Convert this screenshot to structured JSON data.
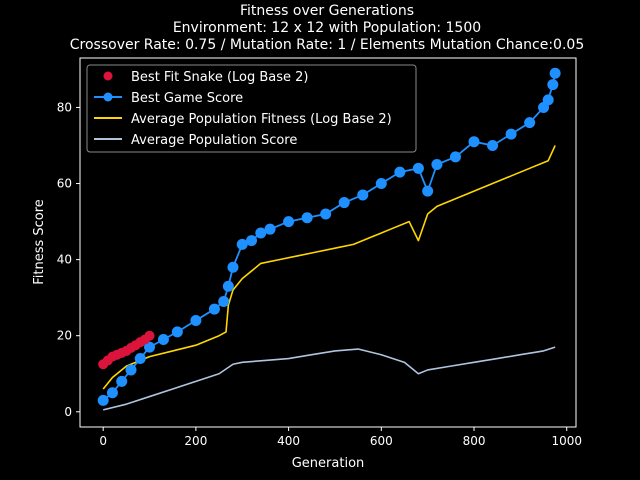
{
  "chart_data": {
    "type": "line",
    "title": "Fitness over Generations",
    "subtitle_lines": [
      "Environment: 12 x 12 with Population: 1500",
      "Crossover Rate: 0.75 / Mutation Rate: 1 / Elements Mutation Chance:0.05"
    ],
    "xlabel": "Generation",
    "ylabel": "Fitness Score",
    "xlim": [
      -50,
      1020
    ],
    "ylim": [
      -4,
      93
    ],
    "xticks": [
      0,
      200,
      400,
      600,
      800,
      1000
    ],
    "yticks": [
      0,
      20,
      40,
      60,
      80
    ],
    "legend_position": "top-left",
    "grid": false,
    "series": [
      {
        "name": "Best Fit Snake (Log Base 2)",
        "style": "scatter",
        "color": "#dc143c",
        "x": [
          0,
          10,
          20,
          30,
          40,
          50,
          60,
          70,
          80,
          90,
          100
        ],
        "y": [
          12.5,
          13.5,
          14.5,
          15,
          15.5,
          16,
          16.8,
          17.5,
          18.3,
          19,
          20
        ]
      },
      {
        "name": "Best Game Score",
        "style": "line-marker",
        "color": "#1e90ff",
        "x": [
          0,
          20,
          40,
          60,
          80,
          100,
          130,
          160,
          200,
          240,
          260,
          270,
          280,
          300,
          320,
          340,
          360,
          400,
          440,
          480,
          520,
          560,
          600,
          640,
          680,
          700,
          720,
          760,
          800,
          840,
          880,
          920,
          950,
          960,
          970,
          975
        ],
        "y": [
          3,
          5,
          8,
          11,
          14,
          17,
          19,
          21,
          24,
          27,
          29,
          33,
          38,
          44,
          45,
          47,
          48,
          50,
          51,
          52,
          55,
          57,
          60,
          63,
          64,
          58,
          65,
          67,
          71,
          70,
          73,
          76,
          80,
          82,
          86,
          89
        ]
      },
      {
        "name": "Average Population Fitness (Log Base 2)",
        "style": "line",
        "color": "#ffd700",
        "x": [
          0,
          20,
          50,
          100,
          150,
          200,
          250,
          265,
          270,
          280,
          300,
          340,
          380,
          420,
          460,
          500,
          540,
          580,
          620,
          660,
          680,
          700,
          720,
          760,
          800,
          840,
          880,
          920,
          960,
          975
        ],
        "y": [
          6,
          9,
          12,
          14.5,
          16,
          17.5,
          20,
          21,
          28,
          32,
          35,
          39,
          40,
          41,
          42,
          43,
          44,
          46,
          48,
          50,
          45,
          52,
          54,
          56,
          58,
          60,
          62,
          64,
          66,
          70
        ]
      },
      {
        "name": "Average Population Score",
        "style": "line",
        "color": "#b0c4de",
        "x": [
          0,
          50,
          100,
          150,
          200,
          250,
          280,
          300,
          350,
          400,
          450,
          500,
          550,
          600,
          650,
          680,
          700,
          750,
          800,
          850,
          900,
          950,
          975
        ],
        "y": [
          0.5,
          2,
          4,
          6,
          8,
          10,
          12.5,
          13,
          13.5,
          14,
          15,
          16,
          16.5,
          15,
          13,
          10,
          11,
          12,
          13,
          14,
          15,
          16,
          17
        ]
      }
    ]
  }
}
